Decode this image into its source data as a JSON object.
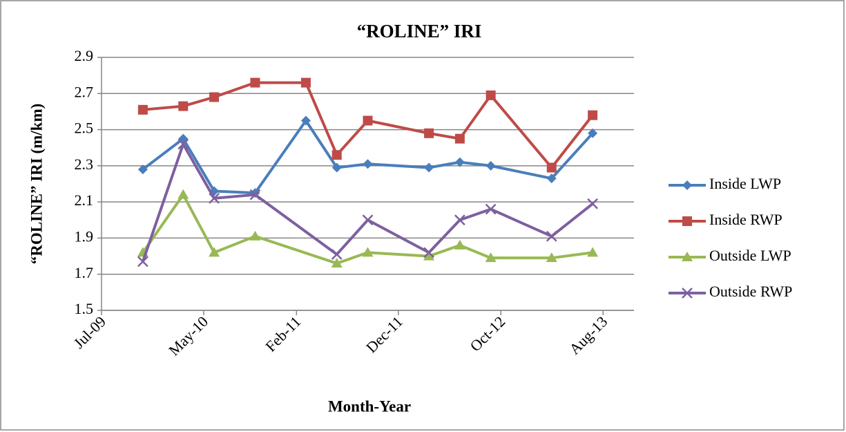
{
  "chart_data": {
    "type": "line",
    "title": "“ROLINE” IRI",
    "x_label": "Month-Year",
    "y_label": "“ROLINE” IRI (m/km)",
    "xlim": [
      "2009-07",
      "2013-11"
    ],
    "xticks": [
      {
        "value": "2009-07",
        "label": "Jul-09"
      },
      {
        "value": "2010-05",
        "label": "May-10"
      },
      {
        "value": "2011-02",
        "label": "Feb-11"
      },
      {
        "value": "2011-12",
        "label": "Dec-11"
      },
      {
        "value": "2012-10",
        "label": "Oct-12"
      },
      {
        "value": "2013-08",
        "label": "Aug-13"
      }
    ],
    "ylim": [
      1.5,
      2.9
    ],
    "yticks": [
      1.5,
      1.7,
      1.9,
      2.1,
      2.3,
      2.5,
      2.7,
      2.9
    ],
    "grid": true,
    "legend": "right",
    "series": [
      {
        "name": "Inside LWP",
        "color": "#4a7ebb",
        "marker": "diamond",
        "x": [
          "2009-11",
          "2010-03",
          "2010-06",
          "2010-10",
          "2011-03",
          "2011-06",
          "2011-09",
          "2012-03",
          "2012-06",
          "2012-09",
          "2013-03",
          "2013-07"
        ],
        "values": [
          2.28,
          2.45,
          2.16,
          2.15,
          2.55,
          2.29,
          2.31,
          2.29,
          2.32,
          2.3,
          2.23,
          2.48
        ]
      },
      {
        "name": "Inside RWP",
        "color": "#be4b48",
        "marker": "square",
        "x": [
          "2009-11",
          "2010-03",
          "2010-06",
          "2010-10",
          "2011-03",
          "2011-06",
          "2011-09",
          "2012-03",
          "2012-06",
          "2012-09",
          "2013-03",
          "2013-07"
        ],
        "values": [
          2.61,
          2.63,
          2.68,
          2.76,
          2.76,
          2.36,
          2.55,
          2.48,
          2.45,
          2.69,
          2.29,
          2.58
        ]
      },
      {
        "name": "Outside LWP",
        "color": "#98b954",
        "marker": "triangle",
        "x": [
          "2009-11",
          "2010-03",
          "2010-06",
          "2010-10",
          "2011-06",
          "2011-09",
          "2012-03",
          "2012-06",
          "2012-09",
          "2013-03",
          "2013-07"
        ],
        "values": [
          1.82,
          2.14,
          1.82,
          1.91,
          1.76,
          1.82,
          1.8,
          1.86,
          1.79,
          1.79,
          1.82
        ]
      },
      {
        "name": "Outside RWP",
        "color": "#7d60a0",
        "marker": "x",
        "x": [
          "2009-11",
          "2010-03",
          "2010-06",
          "2010-10",
          "2011-06",
          "2011-09",
          "2012-03",
          "2012-06",
          "2012-09",
          "2013-03",
          "2013-07"
        ],
        "values": [
          1.77,
          2.42,
          2.12,
          2.14,
          1.81,
          2.0,
          1.82,
          2.0,
          2.06,
          1.91,
          2.09
        ]
      }
    ]
  }
}
